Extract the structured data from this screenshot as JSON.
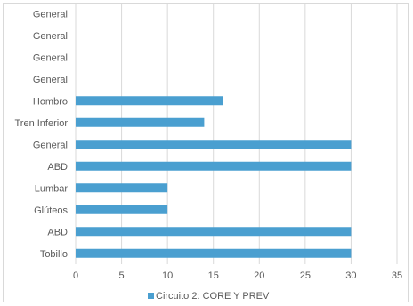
{
  "chart_data": {
    "type": "bar",
    "orientation": "horizontal",
    "categories": [
      "General",
      "General",
      "General",
      "General",
      "Hombro",
      "Tren Inferior",
      "General",
      "ABD",
      "Lumbar",
      "Glúteos",
      "ABD",
      "Tobillo"
    ],
    "series": [
      {
        "name": "Circuito 2: CORE Y PREV",
        "values": [
          0,
          0,
          0,
          0,
          16,
          14,
          30,
          30,
          10,
          10,
          30,
          30
        ]
      }
    ],
    "xlim": [
      0,
      35
    ],
    "xticks": [
      0,
      5,
      10,
      15,
      20,
      25,
      30,
      35
    ],
    "grid": true,
    "legend_position": "bottom",
    "colors": {
      "bar": "#4a9fd0",
      "grid": "#d9d9d9",
      "text": "#595959"
    }
  }
}
